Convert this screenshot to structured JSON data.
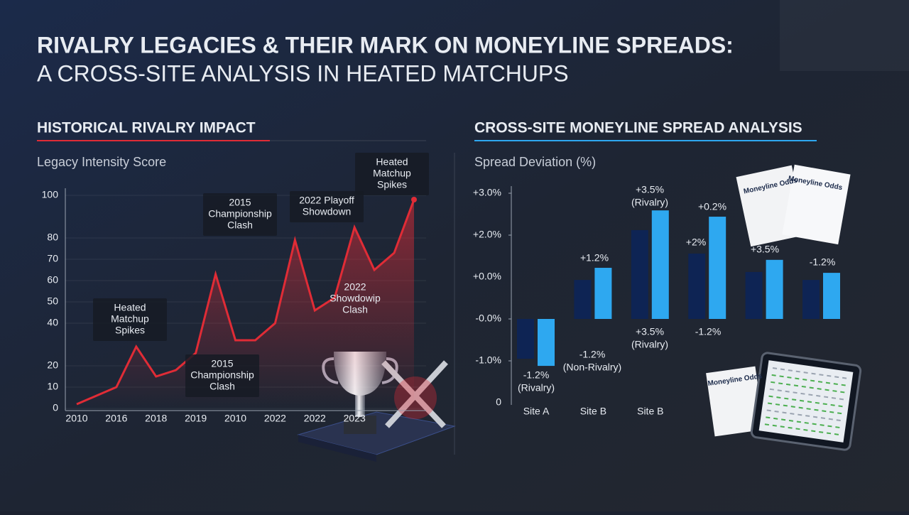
{
  "header": {
    "title": "RIVALRY LEGACIES & THEIR MARK ON MONEYLINE SPREADS:",
    "subtitle": "A CROSS-SITE ANALYSIS IN HEATED MATCHUPS"
  },
  "document_label": "Moneyline Odds",
  "chart_data": [
    {
      "type": "line",
      "title": "HISTORICAL RIVALRY IMPACT",
      "y_label": "Legacy Intensity Score",
      "categories": [
        "2010",
        null,
        "2016",
        null,
        "2018",
        null,
        "2019",
        null,
        "2010",
        null,
        "2022",
        null,
        "2022",
        null,
        "2023",
        null,
        null,
        null
      ],
      "values": [
        2,
        6,
        10,
        29,
        15,
        18,
        26,
        63,
        32,
        32,
        40,
        79,
        46,
        52,
        85,
        65,
        73,
        98
      ],
      "color": "#e02c36",
      "ylim": [
        0,
        100
      ],
      "yticks": [
        0,
        10,
        20,
        40,
        50,
        60,
        70,
        80,
        100
      ],
      "grid": true,
      "annotations": [
        {
          "lines": [
            "Heated",
            "Matchup",
            "Spikes"
          ]
        },
        {
          "lines": [
            "2015",
            "Championship",
            "Clash"
          ]
        },
        {
          "lines": [
            "2022 Playoff",
            "Showdown"
          ]
        },
        {
          "lines": [
            "Heated",
            "Matchup",
            "Spikes"
          ]
        },
        {
          "lines": [
            "2022",
            "Showdowip",
            "Clash"
          ]
        },
        {
          "lines": [
            "2015",
            "Championship",
            "Clash"
          ]
        }
      ]
    },
    {
      "type": "bar",
      "title": "CROSS-SITE MONEYLINE SPREAD ANALYSIS",
      "y_label": "Spread Deviation (%)",
      "categories": [
        "Site A",
        "Site B",
        "Site B",
        null,
        null,
        null
      ],
      "series": [
        {
          "color": "#0e2454",
          "values": [
            -0.95,
            0.93,
            2.12,
            1.56,
            1.12,
            0.93
          ]
        },
        {
          "color": "#2ea8f0",
          "values": [
            -1.12,
            1.22,
            2.59,
            2.44,
            1.41,
            1.1
          ]
        }
      ],
      "ylim": [
        -2,
        3
      ],
      "yticks": [
        {
          "value": 3,
          "label": "+3.0%"
        },
        {
          "value": 2,
          "label": "+2.0%"
        },
        {
          "value": 0,
          "label": "-0.0%"
        },
        {
          "value": -1,
          "label": "-1.0%"
        }
      ],
      "axis_texts": [
        "+0.0%",
        "0"
      ],
      "annotations": [
        {
          "lines": [
            "+3.5%",
            "(Rivalry)"
          ]
        },
        {
          "lines": [
            "+0.2%"
          ]
        },
        {
          "lines": [
            "+2%"
          ]
        },
        {
          "lines": [
            "+1.2%"
          ]
        },
        {
          "lines": [
            "+3.5%"
          ]
        },
        {
          "lines": [
            "-1.2%"
          ]
        },
        {
          "lines": [
            "+3.5%",
            "(Rivalry)"
          ]
        },
        {
          "lines": [
            "-1.2%"
          ]
        },
        {
          "lines": [
            "-1.2%",
            "(Non-Rivalry)"
          ]
        },
        {
          "lines": [
            "-1.2%",
            "(Rivalry)"
          ]
        }
      ]
    }
  ]
}
